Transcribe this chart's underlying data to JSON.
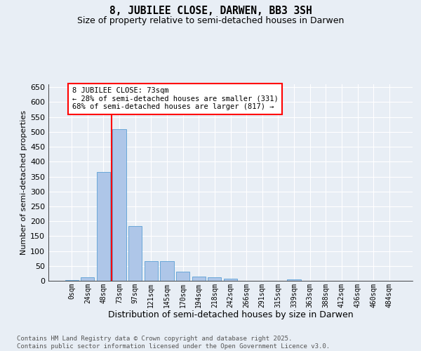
{
  "title_line1": "8, JUBILEE CLOSE, DARWEN, BB3 3SH",
  "title_line2": "Size of property relative to semi-detached houses in Darwen",
  "xlabel": "Distribution of semi-detached houses by size in Darwen",
  "ylabel": "Number of semi-detached properties",
  "categories": [
    "0sqm",
    "24sqm",
    "48sqm",
    "73sqm",
    "97sqm",
    "121sqm",
    "145sqm",
    "170sqm",
    "194sqm",
    "218sqm",
    "242sqm",
    "266sqm",
    "291sqm",
    "315sqm",
    "339sqm",
    "363sqm",
    "388sqm",
    "412sqm",
    "436sqm",
    "460sqm",
    "484sqm"
  ],
  "bar_values": [
    3,
    12,
    365,
    510,
    183,
    65,
    65,
    30,
    15,
    12,
    7,
    0,
    0,
    0,
    5,
    0,
    0,
    0,
    0,
    0,
    0
  ],
  "bar_color": "#aec6e8",
  "bar_edge_color": "#5a9fd4",
  "red_line_x": 2.5,
  "annotation_text": "8 JUBILEE CLOSE: 73sqm\n← 28% of semi-detached houses are smaller (331)\n68% of semi-detached houses are larger (817) →",
  "ylim": [
    0,
    660
  ],
  "yticks": [
    0,
    50,
    100,
    150,
    200,
    250,
    300,
    350,
    400,
    450,
    500,
    550,
    600,
    650
  ],
  "bg_color": "#e8eef5",
  "footer_text": "Contains HM Land Registry data © Crown copyright and database right 2025.\nContains public sector information licensed under the Open Government Licence v3.0."
}
